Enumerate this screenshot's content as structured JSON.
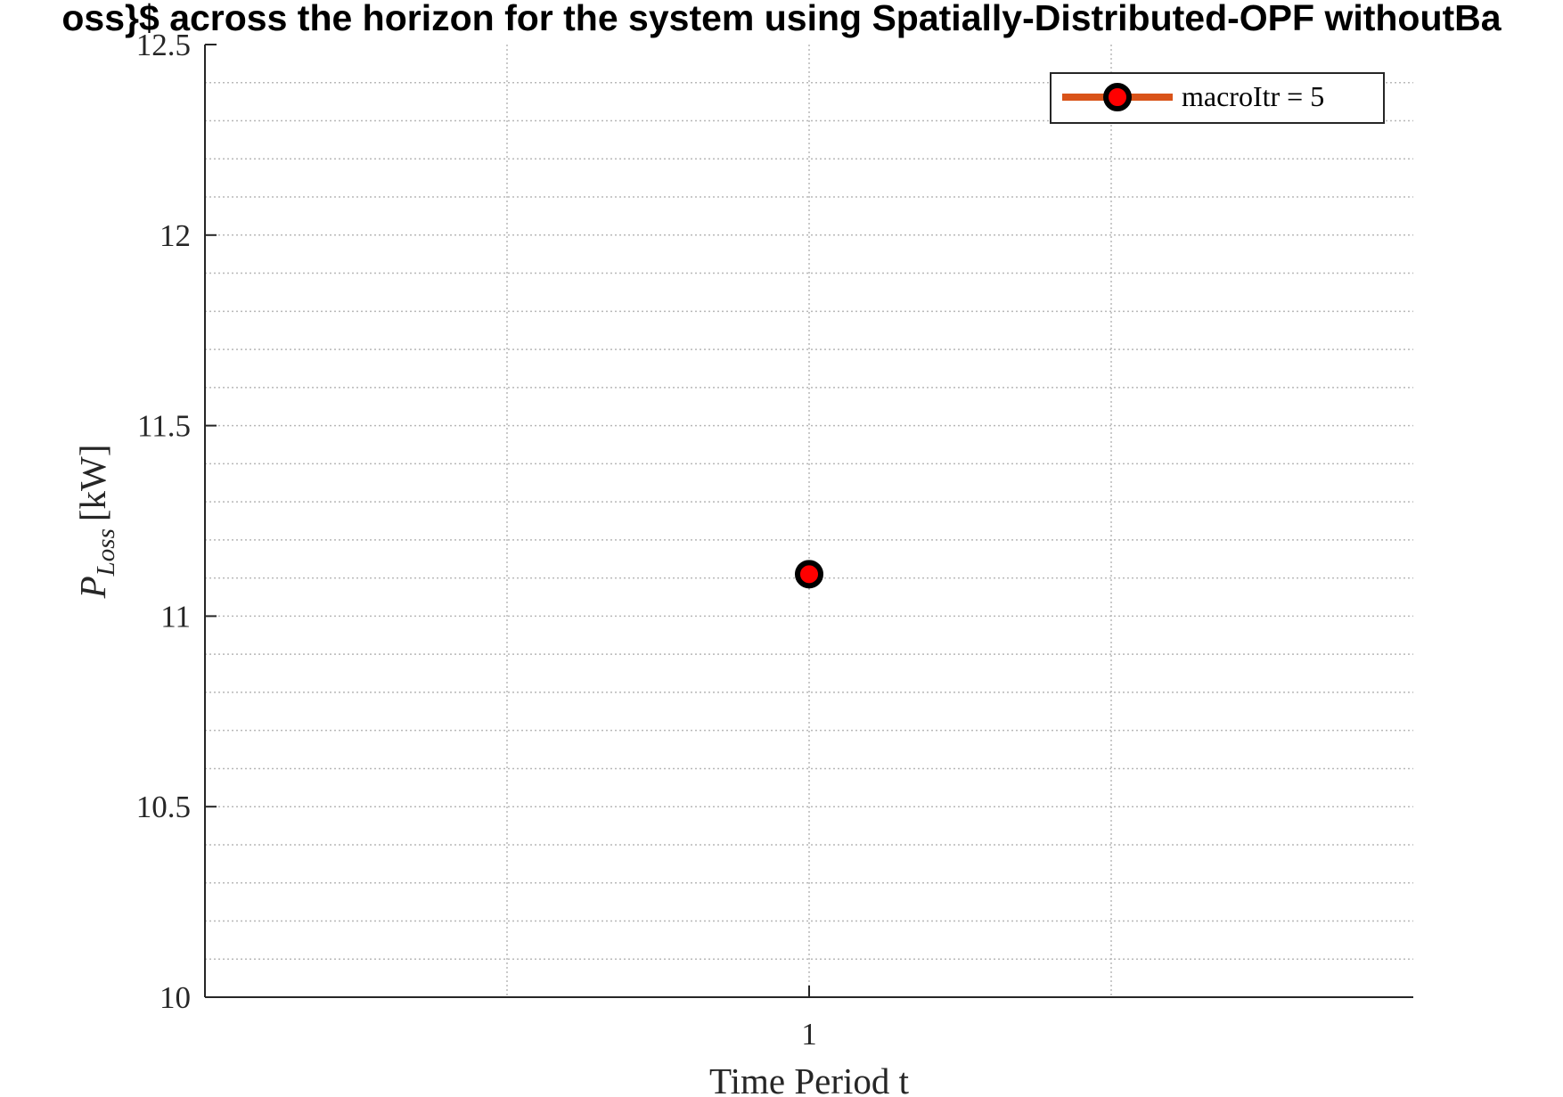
{
  "chart_data": {
    "type": "line",
    "title": "oss}$ across the horizon for the system using Spatially-Distributed-OPF withoutBa",
    "xlabel": "Time Period t",
    "ylabel": "P_Loss [kW]",
    "ylabel_base": "P",
    "ylabel_sub": "Loss",
    "ylabel_unit": "[kW]",
    "xlim": [
      0,
      2
    ],
    "ylim": [
      10,
      12.5
    ],
    "x_ticks": [
      1
    ],
    "x_tick_labels": [
      "1"
    ],
    "y_ticks": [
      10,
      10.5,
      11,
      11.5,
      12,
      12.5
    ],
    "y_tick_labels": [
      "10",
      "10.5",
      "11",
      "11.5",
      "12",
      "12.5"
    ],
    "x_major_grid": [
      0.5,
      1,
      1.5
    ],
    "y_minor_step": 0.1,
    "grid": true,
    "legend_position": "top-right",
    "series": [
      {
        "name": "macroItr = 5",
        "x": [
          1
        ],
        "values": [
          11.11
        ],
        "line_color": "#d95319",
        "marker_edge_color": "#000000",
        "marker_face_color": "#ff0000"
      }
    ]
  }
}
